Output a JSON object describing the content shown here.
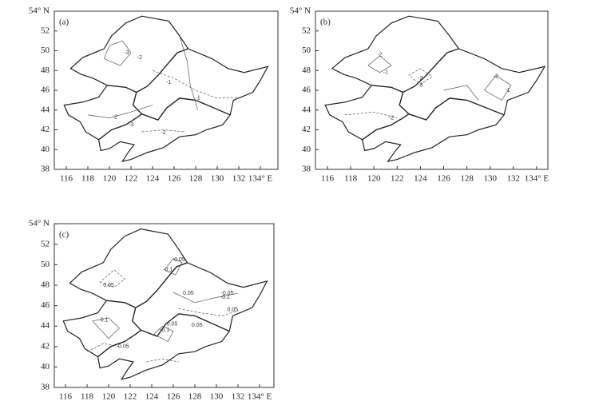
{
  "panels": [
    {
      "label": "(a)",
      "xticks": [
        116,
        118,
        120,
        122,
        124,
        126,
        128,
        130,
        132,
        {
          "value": 134,
          "label": "134° E"
        }
      ],
      "yticks": [
        38,
        40,
        42,
        44,
        46,
        48,
        50,
        52,
        {
          "value": 54,
          "label": "54° N"
        }
      ],
      "contour_labels": [
        "-3",
        "-2",
        "-1",
        "-2",
        "-3",
        "-2",
        "-1"
      ]
    },
    {
      "label": "(b)",
      "xticks": [
        116,
        118,
        120,
        122,
        124,
        126,
        128,
        130,
        132,
        {
          "value": 134,
          "label": "134° E"
        }
      ],
      "yticks": [
        38,
        40,
        42,
        44,
        46,
        48,
        50,
        52,
        {
          "value": 54,
          "label": "54° N"
        }
      ],
      "contour_labels": [
        "-2",
        "-1",
        "-2",
        "-3",
        "-2",
        "-1",
        "-2"
      ]
    },
    {
      "label": "(c)",
      "xticks": [
        116,
        118,
        120,
        122,
        124,
        126,
        128,
        130,
        132,
        {
          "value": 134,
          "label": "134° E"
        }
      ],
      "yticks": [
        38,
        40,
        42,
        44,
        46,
        48,
        50,
        52,
        {
          "value": 54,
          "label": "54° N"
        }
      ],
      "contour_labels": [
        "-0.05",
        "-0.1",
        "0.05",
        "0.05",
        "-0.05",
        "-0.1",
        "0.05",
        "0.05",
        "-0.05",
        "-0.1",
        "0.05",
        "0.1"
      ]
    }
  ]
}
